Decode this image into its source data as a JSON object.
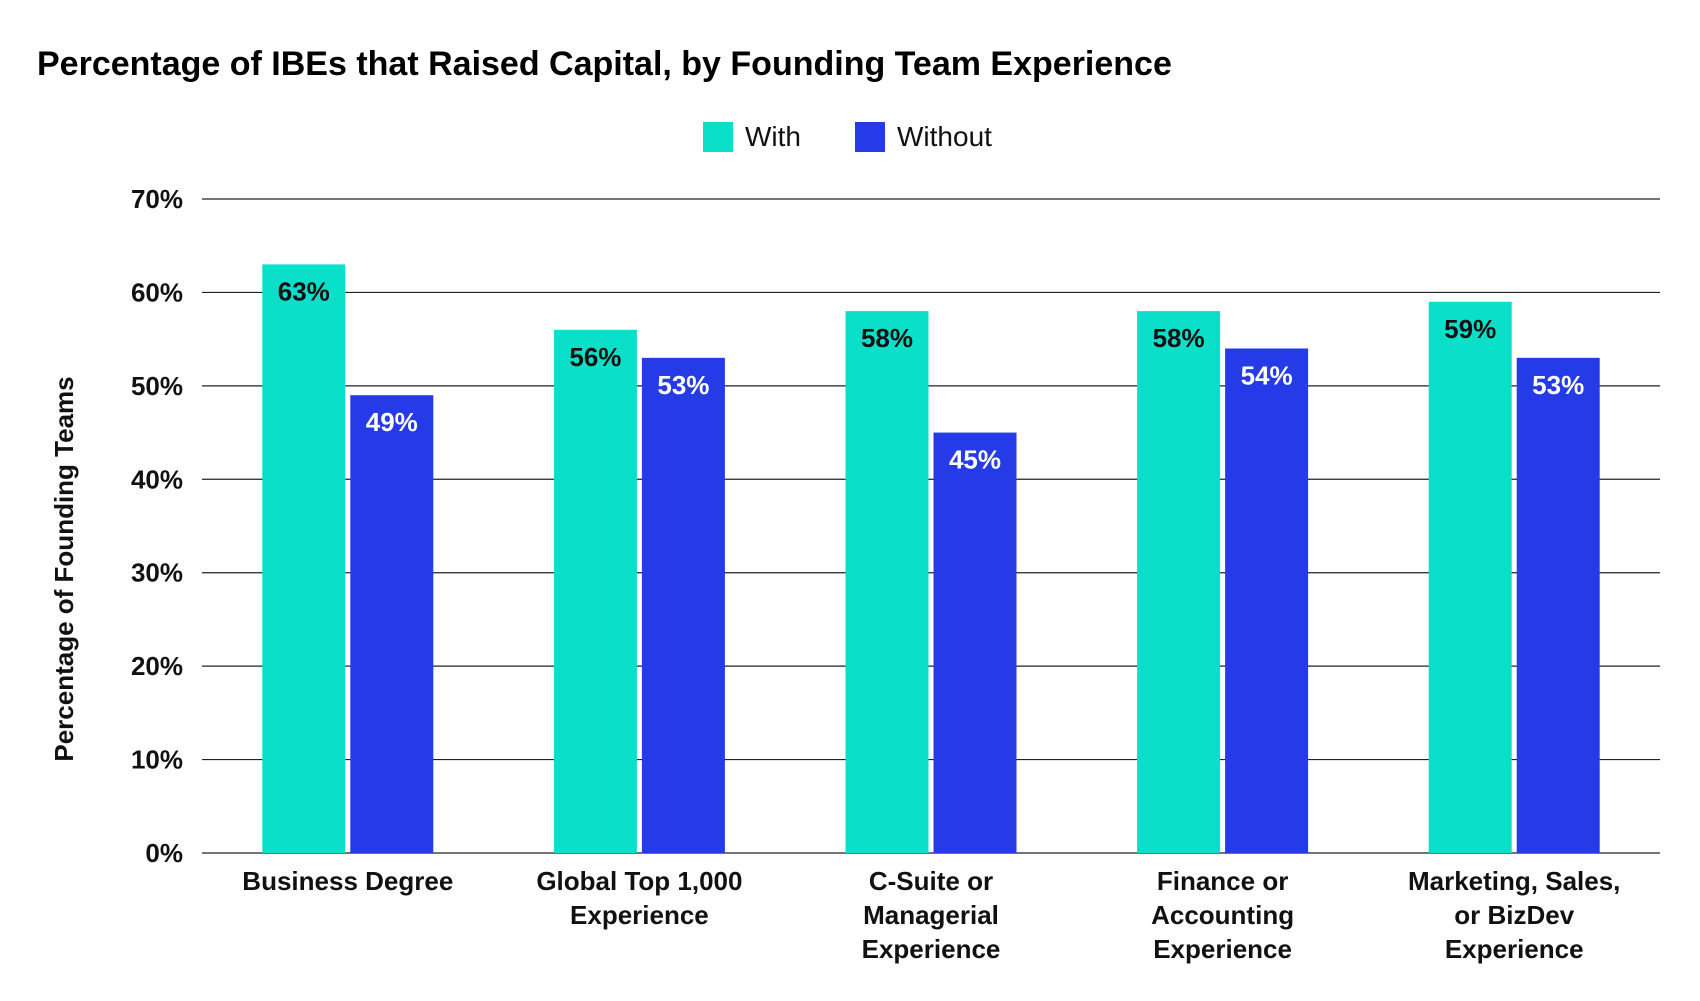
{
  "chart_data": {
    "type": "bar",
    "title": "Percentage of IBEs that Raised Capital, by Founding Team Experience",
    "ylabel": "Percentage of Founding Teams",
    "xlabel": "",
    "ylim": [
      0,
      70
    ],
    "yticks": [
      0,
      10,
      20,
      30,
      40,
      50,
      60,
      70
    ],
    "ytick_labels": [
      "0%",
      "10%",
      "20%",
      "30%",
      "40%",
      "50%",
      "60%",
      "70%"
    ],
    "grid": true,
    "legend_position": "top-center",
    "categories": [
      [
        "Business Degree"
      ],
      [
        "Global Top 1,000",
        "Experience"
      ],
      [
        "C-Suite or",
        "Managerial",
        "Experience"
      ],
      [
        "Finance or",
        "Accounting",
        "Experience"
      ],
      [
        "Marketing, Sales,",
        "or BizDev",
        "Experience"
      ]
    ],
    "series": [
      {
        "name": "With",
        "color": "#0ADFC9",
        "label_color": "#111111",
        "values": [
          63,
          56,
          58,
          58,
          59
        ],
        "labels": [
          "63%",
          "56%",
          "58%",
          "58%",
          "59%"
        ]
      },
      {
        "name": "Without",
        "color": "#263BE8",
        "label_color": "#ffffff",
        "values": [
          49,
          53,
          45,
          54,
          53
        ],
        "labels": [
          "49%",
          "53%",
          "45%",
          "54%",
          "53%"
        ]
      }
    ]
  }
}
